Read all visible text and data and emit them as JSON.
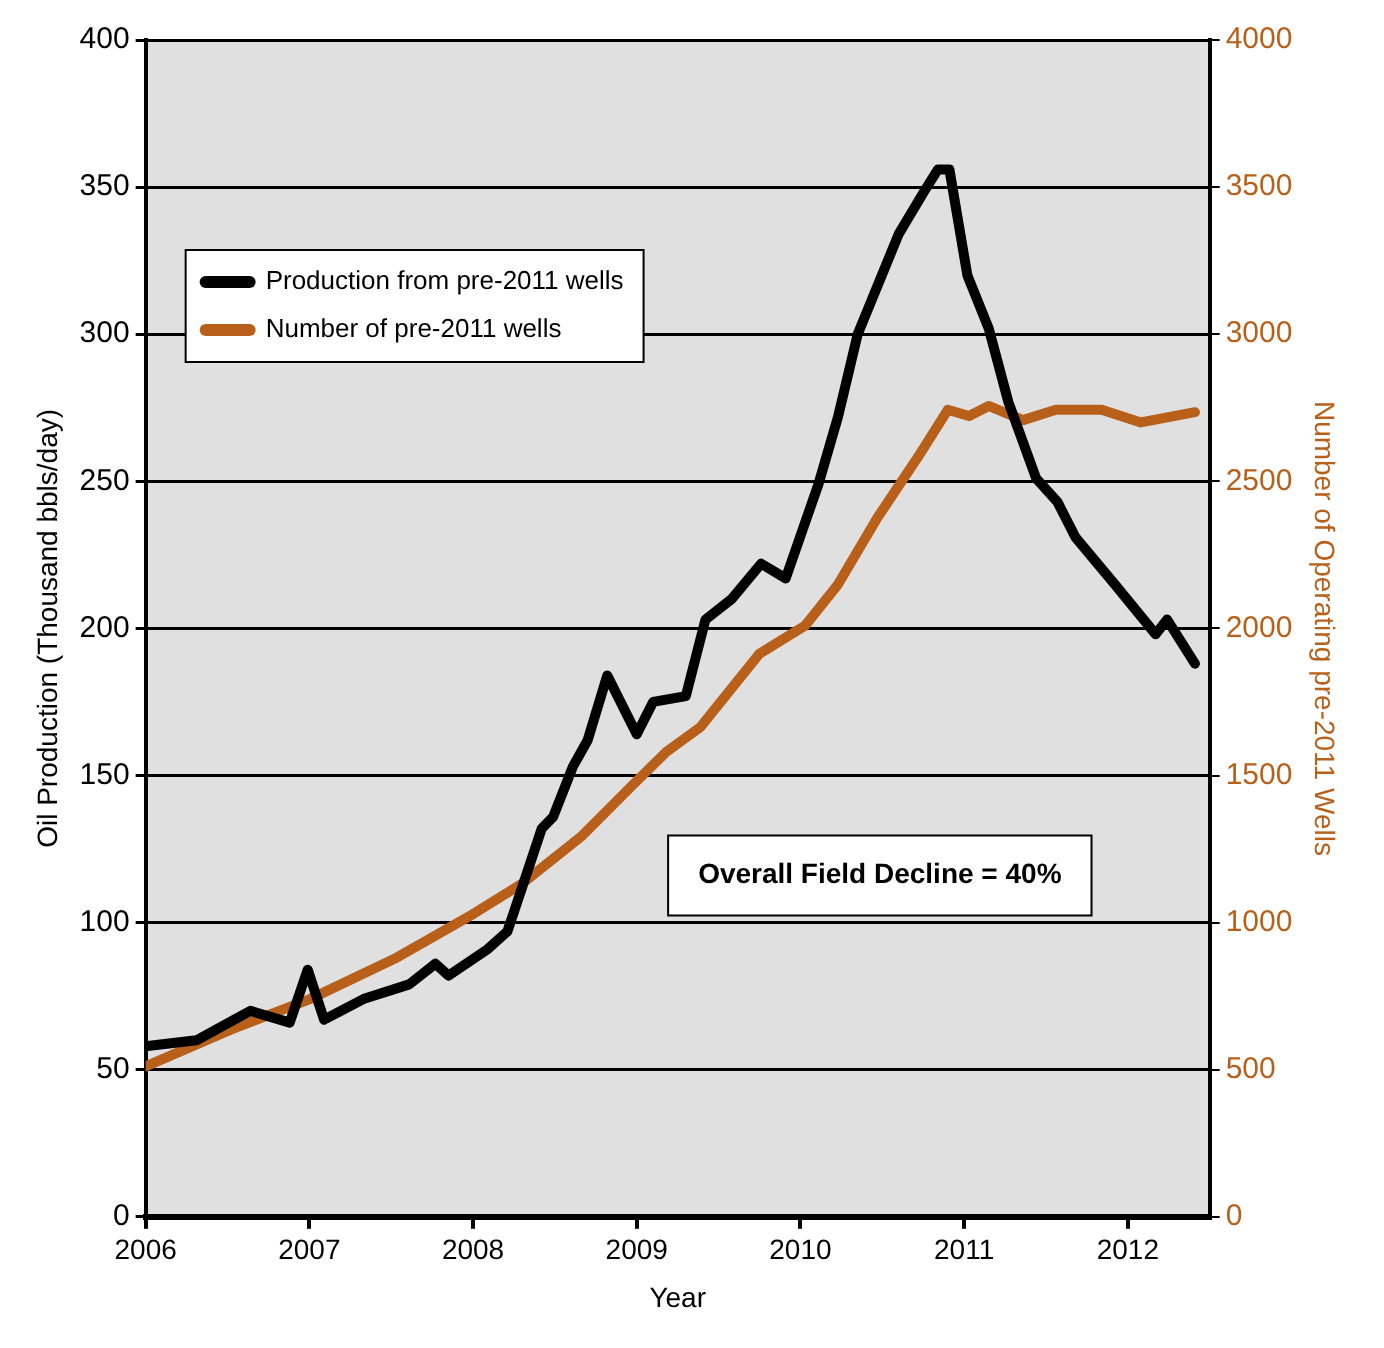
{
  "chart_data": {
    "type": "line",
    "xlabel": "Year",
    "ylabel": "Oil Production (Thousand bbls/day)",
    "y2label": "Number of Operating pre-2011 Wells",
    "xlim": [
      2006,
      2012.5
    ],
    "xticks": [
      2006,
      2007,
      2008,
      2009,
      2010,
      2011,
      2012
    ],
    "ylim": [
      0,
      400
    ],
    "yticks": [
      0,
      50,
      100,
      150,
      200,
      250,
      300,
      350,
      400
    ],
    "y2lim": [
      0,
      4000
    ],
    "y2ticks": [
      0,
      500,
      1000,
      1500,
      2000,
      2500,
      3000,
      3500,
      4000
    ],
    "grid": "y",
    "legend": "top left",
    "marker": "none",
    "line_style": "solid",
    "annotations": [
      "Overall Field Decline = 40%"
    ],
    "series": [
      {
        "name": "Production from pre-2011 wells",
        "color": "#000000",
        "x": [
          2006.0,
          2006.31,
          2006.64,
          2006.88,
          2006.99,
          2007.09,
          2007.33,
          2007.61,
          2007.77,
          2007.85,
          2008.09,
          2008.21,
          2008.42,
          2008.49,
          2008.61,
          2008.7,
          2008.82,
          2009.0,
          2009.1,
          2009.3,
          2009.42,
          2009.58,
          2009.76,
          2009.91,
          2010.11,
          2010.23,
          2010.35,
          2010.6,
          2010.75,
          2010.84,
          2010.91,
          2011.02,
          2011.15,
          2011.27,
          2011.44,
          2011.57,
          2011.68,
          2011.92,
          2012.17,
          2012.24,
          2012.41
        ],
        "values": [
          58,
          60,
          70,
          66,
          84,
          67,
          74,
          79,
          86,
          82,
          91,
          97,
          132,
          136,
          153,
          162,
          184,
          164,
          175,
          177,
          203,
          210,
          222,
          217,
          249,
          272,
          300,
          334,
          348,
          356,
          356,
          320,
          302,
          277,
          251,
          243,
          231,
          215,
          198,
          203,
          188
        ]
      },
      {
        "name": "Number of pre-2011 wells",
        "color": "#b8601a",
        "axis": "y2",
        "x": [
          2006.0,
          2006.52,
          2007.0,
          2007.52,
          2008.0,
          2008.3,
          2008.66,
          2008.98,
          2009.18,
          2009.39,
          2009.75,
          2010.03,
          2010.23,
          2010.47,
          2010.72,
          2010.9,
          2011.03,
          2011.15,
          2011.36,
          2011.56,
          2011.84,
          2012.08,
          2012.41
        ],
        "values": [
          511,
          636,
          739,
          877,
          1029,
          1133,
          1292,
          1470,
          1580,
          1665,
          1914,
          2010,
          2150,
          2376,
          2584,
          2743,
          2722,
          2756,
          2708,
          2743,
          2743,
          2700,
          2735
        ]
      }
    ]
  }
}
